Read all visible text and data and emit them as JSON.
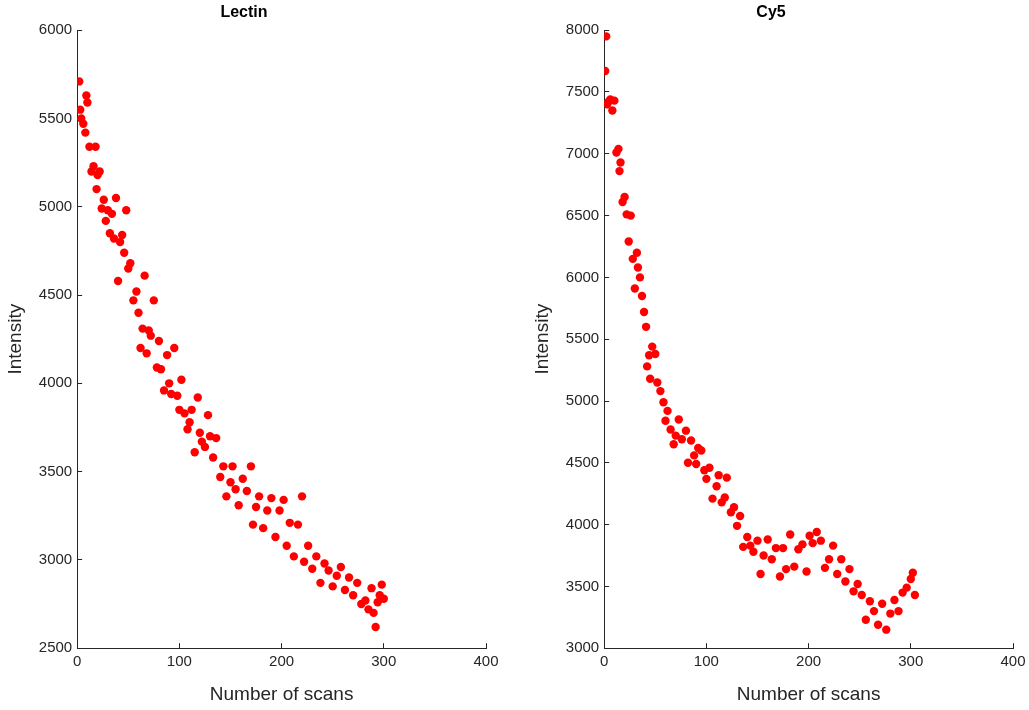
{
  "chart_data": [
    {
      "type": "scatter",
      "title": "Lectin",
      "xlabel": "Number of scans",
      "ylabel": "Intensity",
      "xlim": [
        0,
        400
      ],
      "xticks": [
        0,
        100,
        200,
        300,
        400
      ],
      "ylim": [
        2500,
        6000
      ],
      "yticks": [
        2500,
        3000,
        3500,
        4000,
        4500,
        5000,
        5500,
        6000
      ],
      "grid": false,
      "legend": false,
      "marker": "circle",
      "series": [
        {
          "color": "#ff0000",
          "x": [
            2,
            3,
            4,
            6,
            8,
            9,
            10,
            12,
            14,
            16,
            18,
            19,
            20,
            22,
            24,
            26,
            28,
            30,
            32,
            34,
            36,
            38,
            40,
            42,
            44,
            46,
            48,
            50,
            52,
            55,
            58,
            60,
            62,
            64,
            66,
            68,
            70,
            72,
            75,
            78,
            80,
            82,
            85,
            88,
            90,
            92,
            95,
            98,
            100,
            102,
            105,
            108,
            110,
            112,
            115,
            118,
            120,
            122,
            125,
            128,
            130,
            133,
            136,
            140,
            143,
            146,
            150,
            152,
            155,
            158,
            162,
            166,
            170,
            172,
            175,
            178,
            182,
            186,
            190,
            194,
            198,
            202,
            205,
            208,
            212,
            216,
            220,
            222,
            226,
            230,
            234,
            238,
            242,
            246,
            250,
            254,
            258,
            262,
            266,
            270,
            274,
            278,
            282,
            285,
            288,
            290,
            292,
            294,
            296,
            298,
            300
          ],
          "values": [
            5710,
            5550,
            5500,
            5470,
            5420,
            5630,
            5590,
            5340,
            5200,
            5230,
            5340,
            5100,
            5180,
            5200,
            4990,
            5040,
            4920,
            4980,
            4850,
            4960,
            4820,
            5050,
            4580,
            4800,
            4840,
            4740,
            4980,
            4650,
            4680,
            4470,
            4520,
            4400,
            4200,
            4310,
            4610,
            4170,
            4300,
            4270,
            4470,
            4090,
            4240,
            4080,
            3960,
            4160,
            4000,
            3940,
            4200,
            3930,
            3850,
            4020,
            3830,
            3740,
            3780,
            3850,
            3610,
            3920,
            3720,
            3670,
            3640,
            3820,
            3700,
            3580,
            3690,
            3470,
            3530,
            3360,
            3440,
            3530,
            3400,
            3310,
            3460,
            3390,
            3530,
            3200,
            3300,
            3360,
            3180,
            3280,
            3350,
            3130,
            3280,
            3340,
            3080,
            3210,
            3020,
            3200,
            3360,
            2990,
            3080,
            2950,
            3020,
            2870,
            2980,
            2940,
            2850,
            2910,
            2960,
            2830,
            2900,
            2800,
            2870,
            2750,
            2770,
            2720,
            2840,
            2700,
            2620,
            2760,
            2800,
            2860,
            2780
          ]
        }
      ]
    },
    {
      "type": "scatter",
      "title": "Cy5",
      "xlabel": "Number of scans",
      "ylabel": "Intensity",
      "xlim": [
        0,
        400
      ],
      "xticks": [
        0,
        100,
        200,
        300,
        400
      ],
      "ylim": [
        3000,
        8000
      ],
      "yticks": [
        3000,
        3500,
        4000,
        4500,
        5000,
        5500,
        6000,
        6500,
        7000,
        7500,
        8000
      ],
      "grid": false,
      "legend": false,
      "marker": "circle",
      "series": [
        {
          "color": "#ff0000",
          "x": [
            1,
            2,
            3,
            4,
            6,
            8,
            10,
            12,
            14,
            15,
            16,
            18,
            20,
            22,
            24,
            26,
            28,
            30,
            32,
            33,
            35,
            37,
            39,
            41,
            42,
            44,
            45,
            47,
            50,
            52,
            55,
            58,
            60,
            62,
            65,
            68,
            70,
            73,
            76,
            80,
            82,
            85,
            88,
            90,
            92,
            95,
            98,
            100,
            103,
            106,
            110,
            112,
            115,
            118,
            120,
            124,
            127,
            130,
            133,
            136,
            140,
            143,
            146,
            150,
            153,
            156,
            160,
            164,
            168,
            172,
            175,
            178,
            182,
            186,
            190,
            194,
            198,
            201,
            204,
            208,
            212,
            216,
            220,
            224,
            228,
            232,
            236,
            240,
            244,
            248,
            252,
            256,
            260,
            264,
            268,
            272,
            276,
            280,
            284,
            288,
            292,
            296,
            300,
            302,
            304
          ],
          "values": [
            7670,
            7950,
            7400,
            7420,
            7440,
            7350,
            7430,
            7010,
            7040,
            6860,
            6930,
            6610,
            6650,
            6510,
            6290,
            6500,
            6150,
            5910,
            6200,
            6080,
            6000,
            5850,
            5720,
            5600,
            5280,
            5370,
            5180,
            5440,
            5380,
            5150,
            5080,
            4990,
            4840,
            4920,
            4770,
            4650,
            4720,
            4850,
            4690,
            4760,
            4500,
            4680,
            4560,
            4490,
            4620,
            4600,
            4440,
            4370,
            4460,
            4210,
            4310,
            4400,
            4180,
            4220,
            4380,
            4100,
            4140,
            3990,
            4070,
            3820,
            3900,
            3830,
            3780,
            3870,
            3600,
            3750,
            3880,
            3720,
            3810,
            3580,
            3810,
            3640,
            3920,
            3660,
            3800,
            3840,
            3620,
            3910,
            3850,
            3940,
            3870,
            3650,
            3720,
            3830,
            3600,
            3720,
            3540,
            3640,
            3460,
            3520,
            3430,
            3230,
            3380,
            3300,
            3190,
            3360,
            3150,
            3280,
            3390,
            3300,
            3450,
            3490,
            3560,
            3610,
            3430
          ]
        }
      ]
    }
  ]
}
